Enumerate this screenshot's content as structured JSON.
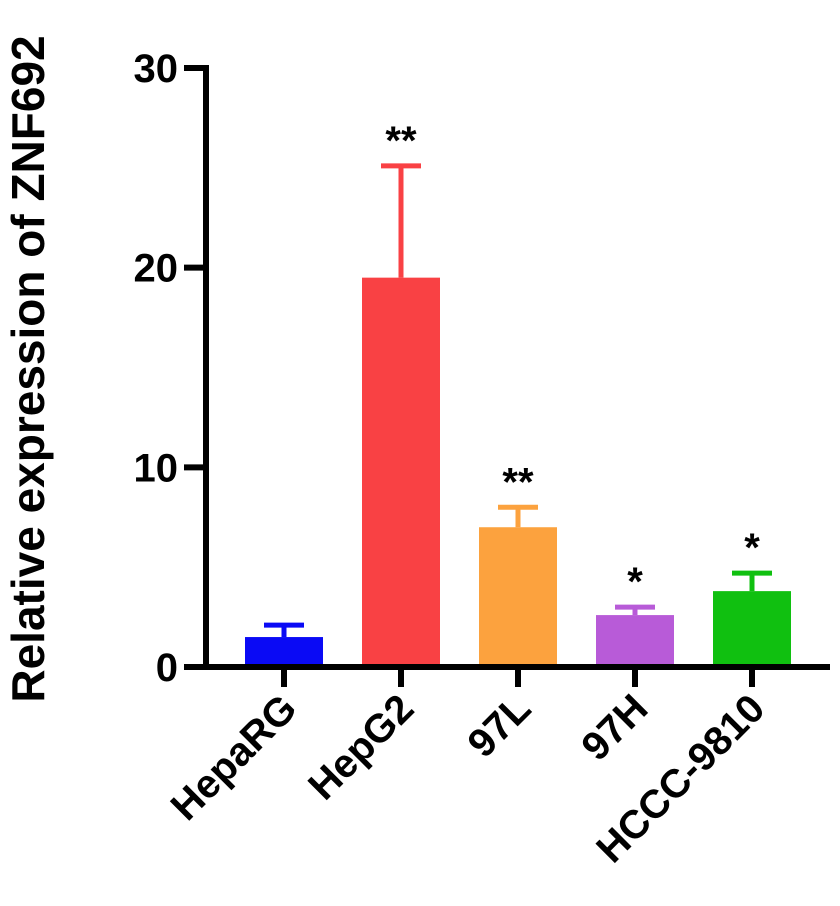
{
  "chart_data": {
    "type": "bar",
    "title": "",
    "xlabel": "",
    "ylabel": "Relative expression of ZNF692",
    "ylim": [
      0,
      30
    ],
    "yticks": [
      0,
      10,
      20,
      30
    ],
    "grid": false,
    "categories": [
      "HepaRG",
      "HepG2",
      "97L",
      "97H",
      "HCCC-9810"
    ],
    "values": [
      1.5,
      19.5,
      7.0,
      2.6,
      3.8
    ],
    "error_upper": [
      0.6,
      5.6,
      1.0,
      0.4,
      0.9
    ],
    "significance": [
      "",
      "**",
      "**",
      "*",
      "*"
    ],
    "colors": [
      "#0a0af5",
      "#f94144",
      "#fca23e",
      "#b85bd8",
      "#10c010"
    ]
  }
}
